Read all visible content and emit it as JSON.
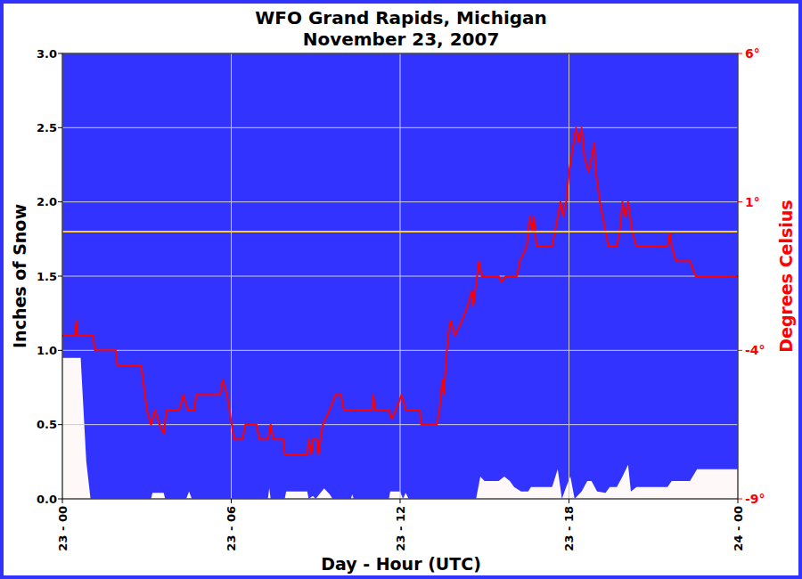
{
  "chart_data": {
    "type": "line",
    "title": "WFO Grand Rapids, Michigan",
    "subtitle": "November 23, 2007",
    "x_label": "Day - Hour (UTC)",
    "y_label": "Inches of Snow",
    "y2_label": "Degrees Celsius",
    "xlim": [
      0,
      24
    ],
    "xticks": [
      {
        "value": 0,
        "label": "23 - 00"
      },
      {
        "value": 6,
        "label": "23 - 06"
      },
      {
        "value": 12,
        "label": "23 - 12"
      },
      {
        "value": 18,
        "label": "23 - 18"
      },
      {
        "value": 24,
        "label": "24 - 00"
      }
    ],
    "ylim": [
      0,
      3
    ],
    "yticks": [
      {
        "value": 0,
        "label": "0.0"
      },
      0.5,
      {
        "value": 1,
        "label": "1.0"
      },
      1.5,
      {
        "value": 2,
        "label": "2.0"
      },
      2.5,
      {
        "value": 3,
        "label": "3.0"
      }
    ],
    "y2lim": [
      -9,
      6
    ],
    "y2ticks": [
      {
        "value": -9,
        "label": "-9°"
      },
      {
        "value": -4,
        "label": "-4°"
      },
      {
        "value": 1,
        "label": "1°"
      },
      {
        "value": 6,
        "label": "6°"
      }
    ],
    "grid": true,
    "series": [
      {
        "type": "area",
        "color": "#fff8f8",
        "x": [
          0,
          0.65,
          0.85,
          1.0,
          3.15,
          3.2,
          3.6,
          3.65,
          4.4,
          4.5,
          4.6,
          7.3,
          7.35,
          7.4,
          7.9,
          7.95,
          8.7,
          8.75,
          8.9,
          9.0,
          9.3,
          9.5,
          9.6,
          10.25,
          10.3,
          10.35,
          11.6,
          11.65,
          12.0,
          12.1,
          12.2,
          12.3,
          14.7,
          14.85,
          15.0,
          15.5,
          15.7,
          15.9,
          16.05,
          16.3,
          16.55,
          16.65,
          17.4,
          17.6,
          17.75,
          17.9,
          18.05,
          18.2,
          18.45,
          18.65,
          18.8,
          19.0,
          19.3,
          19.45,
          19.7,
          19.9,
          20.1,
          20.2,
          20.4,
          21.5,
          21.65,
          22.3,
          22.55,
          24
        ],
        "values": [
          0.95,
          0.95,
          0.25,
          0,
          0,
          0.04,
          0.04,
          0,
          0,
          0.05,
          0,
          0,
          0.07,
          0,
          0,
          0.05,
          0.05,
          0,
          0.02,
          0,
          0.07,
          0.03,
          0,
          0,
          0.03,
          0,
          0,
          0.05,
          0.05,
          0,
          0.04,
          0,
          0,
          0.15,
          0.12,
          0.12,
          0.15,
          0.12,
          0.08,
          0.05,
          0.05,
          0.08,
          0.08,
          0.2,
          0,
          0.08,
          0.15,
          0,
          0.05,
          0.12,
          0.12,
          0.05,
          0.04,
          0.08,
          0.08,
          0.15,
          0.23,
          0.05,
          0.08,
          0.08,
          0.12,
          0.12,
          0.2,
          0.2
        ]
      },
      {
        "type": "line",
        "color": "#ff0000",
        "axis": "y2",
        "x": [
          0,
          0.45,
          0.5,
          0.55,
          1.1,
          1.15,
          1.9,
          1.95,
          2.8,
          3.0,
          3.15,
          3.3,
          3.45,
          3.6,
          3.7,
          4.15,
          4.3,
          4.45,
          4.7,
          4.75,
          5.6,
          5.7,
          5.85,
          6.1,
          6.4,
          6.5,
          6.9,
          7.0,
          7.3,
          7.4,
          7.5,
          7.85,
          7.9,
          8.7,
          8.75,
          8.85,
          8.9,
          9.05,
          9.1,
          9.25,
          9.5,
          9.7,
          9.9,
          10.0,
          11.0,
          11.05,
          11.1,
          11.6,
          11.7,
          11.85,
          12.05,
          12.2,
          12.7,
          12.75,
          13.3,
          13.4,
          13.5,
          13.55,
          13.7,
          13.8,
          13.95,
          14.2,
          14.4,
          14.55,
          14.6,
          14.8,
          14.9,
          15.5,
          15.6,
          15.75,
          16.15,
          16.25,
          16.5,
          16.6,
          16.7,
          16.75,
          16.85,
          17.4,
          17.6,
          17.7,
          17.8,
          17.9,
          18.0,
          18.25,
          18.35,
          18.45,
          18.55,
          18.7,
          18.8,
          18.9,
          18.95,
          19.1,
          19.2,
          19.4,
          19.7,
          19.8,
          19.9,
          20.0,
          20.1,
          20.25,
          20.4,
          21.5,
          21.6,
          21.65,
          21.8,
          22.3,
          22.5,
          24
        ],
        "values": [
          -3.5,
          -3.5,
          -3.0,
          -3.5,
          -3.5,
          -4.0,
          -4.0,
          -4.5,
          -4.5,
          -6.0,
          -6.5,
          -6.0,
          -6.5,
          -6.8,
          -6.0,
          -6.0,
          -5.5,
          -6.0,
          -6.0,
          -5.5,
          -5.5,
          -5.0,
          -5.5,
          -7.0,
          -7.0,
          -6.5,
          -6.5,
          -7.0,
          -7.0,
          -6.5,
          -7.0,
          -7.0,
          -7.5,
          -7.5,
          -7.0,
          -7.5,
          -7.0,
          -7.0,
          -7.5,
          -6.5,
          -6.0,
          -5.5,
          -5.5,
          -6.0,
          -6.0,
          -5.5,
          -6.0,
          -6.0,
          -6.3,
          -6.0,
          -5.5,
          -6.0,
          -6.0,
          -6.5,
          -6.5,
          -6.0,
          -5.0,
          -5.5,
          -3.5,
          -3.0,
          -3.5,
          -3.0,
          -2.5,
          -2.0,
          -2.5,
          -1.0,
          -1.5,
          -1.5,
          -1.7,
          -1.5,
          -1.5,
          -1.0,
          -0.5,
          0.5,
          0.0,
          0.5,
          -0.5,
          -0.5,
          0.5,
          1.0,
          0.5,
          1.0,
          2.0,
          3.5,
          3.0,
          3.5,
          2.5,
          2.0,
          2.5,
          3.0,
          2.0,
          1.0,
          0.5,
          -0.5,
          -0.5,
          0.0,
          1.0,
          0.5,
          1.0,
          0.0,
          -0.5,
          -0.5,
          0.0,
          -0.5,
          -1.0,
          -1.0,
          -1.5,
          -1.5
        ]
      },
      {
        "type": "line",
        "color": "#ffcc33",
        "axis": "y2",
        "x": [
          0,
          24
        ],
        "values": [
          0,
          0
        ]
      }
    ]
  }
}
